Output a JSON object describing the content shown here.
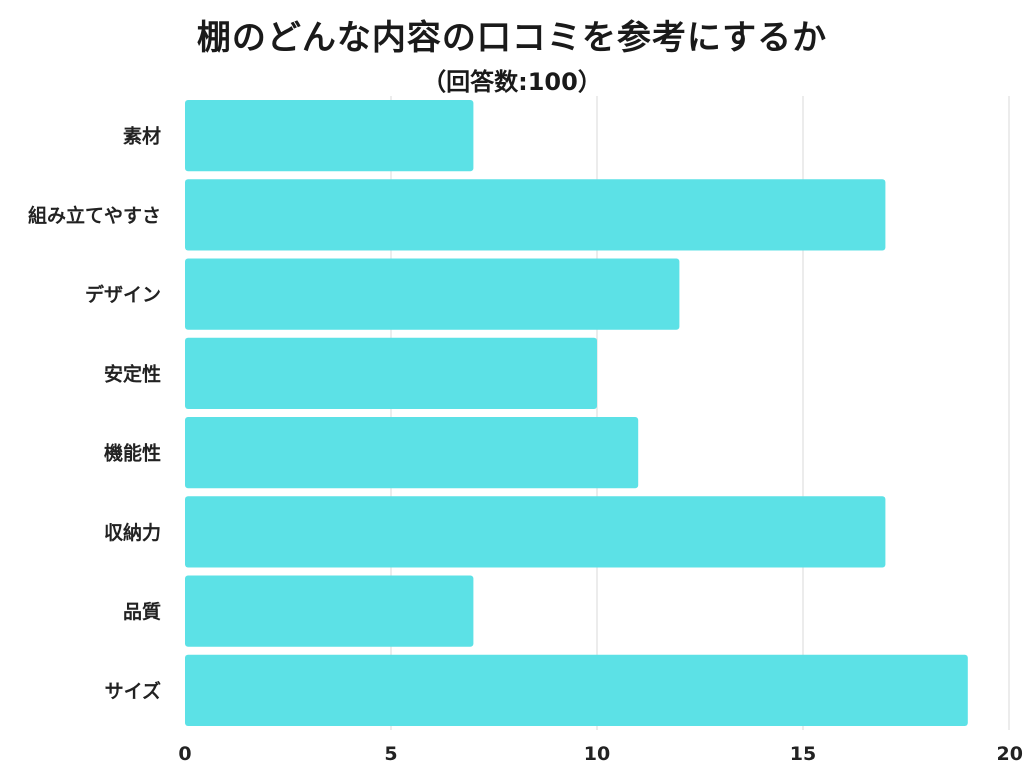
{
  "chart_data": {
    "type": "bar",
    "orientation": "horizontal",
    "title": "棚のどんな内容の口コミを参考にするか",
    "subtitle": "（回答数:100）",
    "categories": [
      "素材",
      "組み立てやすさ",
      "デザイン",
      "安定性",
      "機能性",
      "収納力",
      "品質",
      "サイズ"
    ],
    "values": [
      7,
      17,
      12,
      10,
      11,
      17,
      7,
      19
    ],
    "xlim": [
      0,
      20
    ],
    "xticks": [
      0,
      5,
      10,
      15,
      20
    ],
    "grid": true,
    "bar_color": "#5ce1e6",
    "grid_color": "#d9d9d9"
  }
}
